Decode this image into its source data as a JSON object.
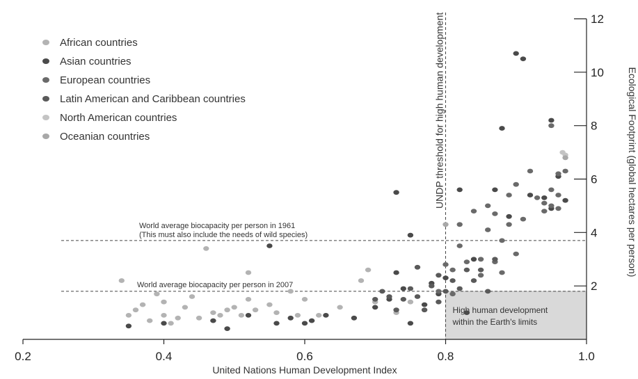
{
  "chart_data": {
    "type": "scatter",
    "xlabel": "United Nations Human Development Index",
    "ylabel": "Ecological Footprint (global hectares per person)",
    "xlim": [
      0.2,
      1.0
    ],
    "ylim": [
      0,
      12
    ],
    "xticks": [
      "0.2",
      "0.4",
      "0.6",
      "0.8",
      "1.0"
    ],
    "yticks": [
      "2",
      "4",
      "6",
      "8",
      "10",
      "12"
    ],
    "legend_position": "top-left",
    "threshold_label": "UNDP threshold for high human development",
    "threshold_x": 0.8,
    "biocapacity_lines": [
      {
        "y": 3.7,
        "label_lines": [
          "World average biocapacity per person in 1961",
          "(This must also include the needs of wild species)"
        ]
      },
      {
        "y": 1.8,
        "label_lines": [
          "World average biocapacity per person in 2007"
        ]
      }
    ],
    "target_box_lines": [
      "High human development",
      "within the Earth's limits"
    ],
    "series": [
      {
        "name": "African countries",
        "color": "#b3b3b3",
        "points": [
          [
            0.34,
            2.2
          ],
          [
            0.35,
            0.9
          ],
          [
            0.36,
            1.1
          ],
          [
            0.37,
            1.3
          ],
          [
            0.38,
            0.7
          ],
          [
            0.39,
            1.7
          ],
          [
            0.4,
            0.9
          ],
          [
            0.4,
            1.4
          ],
          [
            0.41,
            0.6
          ],
          [
            0.42,
            0.8
          ],
          [
            0.43,
            1.2
          ],
          [
            0.44,
            1.6
          ],
          [
            0.45,
            0.8
          ],
          [
            0.46,
            3.4
          ],
          [
            0.47,
            1.0
          ],
          [
            0.48,
            0.9
          ],
          [
            0.49,
            1.1
          ],
          [
            0.5,
            1.2
          ],
          [
            0.51,
            0.9
          ],
          [
            0.52,
            1.5
          ],
          [
            0.52,
            2.5
          ],
          [
            0.53,
            1.1
          ],
          [
            0.55,
            1.3
          ],
          [
            0.56,
            1.0
          ],
          [
            0.58,
            1.8
          ],
          [
            0.59,
            0.9
          ],
          [
            0.6,
            1.5
          ],
          [
            0.62,
            0.9
          ],
          [
            0.65,
            1.2
          ],
          [
            0.68,
            2.2
          ],
          [
            0.69,
            2.6
          ],
          [
            0.7,
            1.4
          ],
          [
            0.73,
            1.0
          ],
          [
            0.75,
            1.4
          ]
        ]
      },
      {
        "name": "Asian countries",
        "color": "#4a4a4a",
        "points": [
          [
            0.35,
            0.5
          ],
          [
            0.4,
            0.6
          ],
          [
            0.47,
            0.7
          ],
          [
            0.49,
            0.4
          ],
          [
            0.52,
            0.9
          ],
          [
            0.55,
            3.5
          ],
          [
            0.56,
            0.6
          ],
          [
            0.58,
            0.8
          ],
          [
            0.6,
            0.6
          ],
          [
            0.61,
            0.7
          ],
          [
            0.63,
            0.9
          ],
          [
            0.67,
            0.8
          ],
          [
            0.7,
            1.2
          ],
          [
            0.72,
            1.5
          ],
          [
            0.73,
            2.5
          ],
          [
            0.73,
            5.5
          ],
          [
            0.74,
            1.9
          ],
          [
            0.75,
            0.6
          ],
          [
            0.75,
            3.9
          ],
          [
            0.77,
            1.3
          ],
          [
            0.78,
            2.1
          ],
          [
            0.79,
            1.7
          ],
          [
            0.8,
            2.3
          ],
          [
            0.82,
            5.6
          ],
          [
            0.83,
            1.0
          ],
          [
            0.84,
            3.0
          ],
          [
            0.87,
            5.6
          ],
          [
            0.88,
            7.9
          ],
          [
            0.89,
            4.6
          ],
          [
            0.9,
            10.7
          ],
          [
            0.91,
            10.5
          ],
          [
            0.92,
            5.4
          ],
          [
            0.94,
            5.3
          ],
          [
            0.95,
            8.2
          ],
          [
            0.95,
            4.9
          ],
          [
            0.96,
            6.1
          ],
          [
            0.97,
            5.2
          ]
        ]
      },
      {
        "name": "European countries",
        "color": "#6a6a6a",
        "points": [
          [
            0.79,
            1.8
          ],
          [
            0.8,
            2.8
          ],
          [
            0.81,
            1.7
          ],
          [
            0.81,
            2.6
          ],
          [
            0.82,
            3.5
          ],
          [
            0.82,
            4.3
          ],
          [
            0.83,
            2.9
          ],
          [
            0.84,
            4.8
          ],
          [
            0.85,
            2.4
          ],
          [
            0.85,
            3.0
          ],
          [
            0.86,
            4.1
          ],
          [
            0.86,
            5.0
          ],
          [
            0.87,
            2.9
          ],
          [
            0.87,
            4.7
          ],
          [
            0.88,
            2.5
          ],
          [
            0.88,
            3.7
          ],
          [
            0.89,
            4.3
          ],
          [
            0.89,
            5.4
          ],
          [
            0.9,
            5.8
          ],
          [
            0.9,
            3.2
          ],
          [
            0.91,
            4.5
          ],
          [
            0.92,
            6.3
          ],
          [
            0.93,
            5.3
          ],
          [
            0.94,
            4.8
          ],
          [
            0.94,
            5.1
          ],
          [
            0.95,
            5.0
          ],
          [
            0.95,
            5.6
          ],
          [
            0.95,
            8.0
          ],
          [
            0.96,
            4.9
          ],
          [
            0.96,
            5.4
          ],
          [
            0.96,
            6.2
          ],
          [
            0.97,
            6.3
          ]
        ]
      },
      {
        "name": "Latin American and Caribbean countries",
        "color": "#5a5a5a",
        "points": [
          [
            0.7,
            1.5
          ],
          [
            0.71,
            1.8
          ],
          [
            0.72,
            1.6
          ],
          [
            0.73,
            1.1
          ],
          [
            0.74,
            1.5
          ],
          [
            0.75,
            1.9
          ],
          [
            0.76,
            1.6
          ],
          [
            0.76,
            2.7
          ],
          [
            0.77,
            1.1
          ],
          [
            0.78,
            2.0
          ],
          [
            0.79,
            2.4
          ],
          [
            0.79,
            1.4
          ],
          [
            0.8,
            1.8
          ],
          [
            0.81,
            2.2
          ],
          [
            0.82,
            1.9
          ],
          [
            0.83,
            2.6
          ],
          [
            0.84,
            2.2
          ],
          [
            0.85,
            2.6
          ],
          [
            0.86,
            1.8
          ],
          [
            0.87,
            3.0
          ]
        ]
      },
      {
        "name": "North American countries",
        "color": "#c4c4c4",
        "points": [
          [
            0.966,
            7.0
          ],
          [
            0.97,
            6.9
          ]
        ]
      },
      {
        "name": "Oceanian countries",
        "color": "#a8a8a8",
        "points": [
          [
            0.8,
            4.3
          ],
          [
            0.97,
            6.8
          ]
        ]
      }
    ]
  }
}
